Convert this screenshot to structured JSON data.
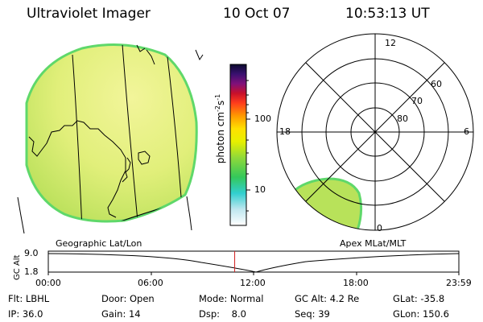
{
  "header": {
    "instrument": "Ultraviolet Imager",
    "date": "10 Oct 07",
    "time": "10:53:13 UT"
  },
  "colorbar": {
    "label": "photon cm",
    "exponent": "-2",
    "s_label": "s",
    "s_exponent": "-1",
    "ticks": [
      "100",
      "10"
    ]
  },
  "polar": {
    "lat_labels": [
      "80",
      "70",
      "60"
    ],
    "mlt_labels": {
      "top": "12",
      "right": "6",
      "left": "18",
      "bottom": "0"
    }
  },
  "timeline": {
    "left_title": "Geographic Lat/Lon",
    "right_title": "Apex MLat/MLT",
    "axis_label": "GC Alt",
    "y_labels": [
      "9.0",
      "1.8"
    ],
    "x_labels": [
      "00:00",
      "06:00",
      "12:00",
      "18:00",
      "23:59"
    ],
    "current_time_fraction": 0.454,
    "colors": {
      "marker": "#d02020",
      "curve": "#000000"
    }
  },
  "footer": {
    "row1": [
      {
        "label": "Flt:",
        "value": "LBHL"
      },
      {
        "label": "Door:",
        "value": "Open"
      },
      {
        "label": "Mode:",
        "value": "Normal"
      },
      {
        "label": "GC Alt:",
        "value": "4.2 Re"
      },
      {
        "label": "GLat:",
        "value": "-35.8"
      }
    ],
    "row2": [
      {
        "label": "IP:",
        "value": "36.0"
      },
      {
        "label": "Gain:",
        "value": "14"
      },
      {
        "label": "Dsp:",
        "value": "8.0"
      },
      {
        "label": "Seq:",
        "value": "39"
      },
      {
        "label": "GLon:",
        "value": "150.6"
      }
    ]
  },
  "colors": {
    "disk_fill": "#dff07a",
    "disk_edge": "#5fd86a",
    "polar_patch": "#b8e25a"
  }
}
